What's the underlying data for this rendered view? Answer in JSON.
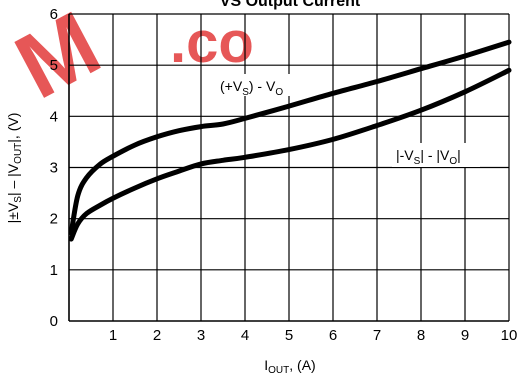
{
  "chart_data": {
    "type": "line",
    "title": "VS Output Current",
    "xlabel": {
      "main": "I",
      "sub": "OUT",
      "rest": ", (A)"
    },
    "ylabel": {
      "p1": "|",
      "pm": "±V",
      "s1": "S",
      "p2": "| – |V",
      "s2": "OUT",
      "p3": "|, (V)"
    },
    "xlim": [
      0,
      10
    ],
    "ylim": [
      0,
      6
    ],
    "xticks": [
      1,
      2,
      3,
      4,
      5,
      6,
      7,
      8,
      9,
      10
    ],
    "yticks": [
      0,
      1,
      2,
      3,
      4,
      5,
      6
    ],
    "grid": true,
    "series": [
      {
        "name": "(+VS) - VO",
        "x": [
          0.05,
          0.2,
          0.4,
          0.7,
          1.0,
          1.5,
          2.0,
          2.5,
          3.0,
          3.5,
          4.0,
          5.0,
          6.0,
          7.0,
          8.0,
          9.0,
          10.0
        ],
        "y": [
          1.72,
          2.45,
          2.8,
          3.06,
          3.22,
          3.44,
          3.6,
          3.72,
          3.8,
          3.85,
          3.96,
          4.2,
          4.45,
          4.68,
          4.93,
          5.18,
          5.45
        ]
      },
      {
        "name": "|-VS| - |VO|",
        "x": [
          0.05,
          0.2,
          0.4,
          0.7,
          1.0,
          1.5,
          2.0,
          2.5,
          3.0,
          3.5,
          4.0,
          5.0,
          6.0,
          7.0,
          8.0,
          9.0,
          10.0
        ],
        "y": [
          1.6,
          1.9,
          2.1,
          2.26,
          2.4,
          2.6,
          2.78,
          2.93,
          3.07,
          3.14,
          3.2,
          3.35,
          3.55,
          3.82,
          4.12,
          4.48,
          4.9
        ]
      }
    ],
    "annotations": [
      {
        "pre": "(+V",
        "s1": "S",
        "mid": ") - V",
        "s2": "O",
        "post": ""
      },
      {
        "pre": "|-V",
        "s1": "S",
        "mid": "| - |V",
        "s2": "O",
        "post": "|"
      }
    ]
  },
  "watermark": {
    "left": "M",
    "right": ".co"
  },
  "colors": {
    "line": "#000000",
    "grid": "#000000",
    "watermark": "#e23a3a"
  }
}
